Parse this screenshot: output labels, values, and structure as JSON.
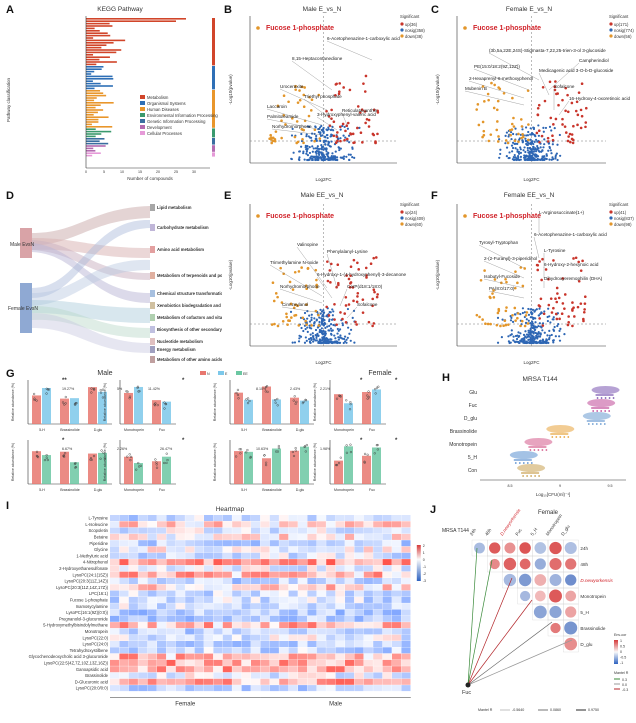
{
  "panels": {
    "A": {
      "label": "A",
      "title": "KEGG Pathway",
      "ylabel": "Pathway classification",
      "xlabel": "Number of compounds",
      "legend": [
        "Metabolism",
        "Organismal Systems",
        "Human Diseases",
        "Environmental Information Processing",
        "Genetic Information Processing",
        "Development",
        "Cellular Processes"
      ],
      "legend_colors": [
        "#d1452a",
        "#2e6fb6",
        "#e9962b",
        "#3a9a6e",
        "#3a6ea0",
        "#b46bb0",
        "#e69ad8"
      ]
    },
    "B": {
      "label": "B",
      "title": "Male E_vs_N",
      "fuc": "Fucose 1-phosphate",
      "ann": [
        "6-Acetophenazine-1-carboxylic acid",
        "8,15-Heptacontanedione",
        "Uroceraxite",
        "Triethyl phosphate",
        "Laccaroin",
        "Palmitoleamide",
        "Norhydromorphone",
        "Reticulataxanthin",
        "3-Hydroxyphenyl-valeric acid"
      ],
      "legend_title": "Significant",
      "legend": [
        "up(36)",
        "nosig(358)",
        "down(38)"
      ],
      "xlabel": "Log2FC",
      "ylabel": "-Log10(pvalue)"
    },
    "C": {
      "label": "C",
      "title": "Female E_vs_N",
      "fuc": "Fucose 1-phosphate",
      "ann": [
        "(3b,5a,22E,24S)-Stigmasta-7,22,25-trien-3-ol 3-glucoside",
        "Campherindiol",
        "PE(15:0/18:2(9Z,12Z))",
        "Medicagenic acid 3-O-b-D-glucoside",
        "2-Hexaprenyl-6-methoxyphenol",
        "Mubenin B",
        "Sofalcone",
        "16-Hydroxy-4-oxoretinoic acid"
      ],
      "legend_title": "Significant",
      "legend": [
        "up(171)",
        "nosig(774)",
        "down(56)"
      ],
      "xlabel": "Log2FC",
      "ylabel": "-Log10(pvalue)"
    },
    "D": {
      "label": "D",
      "left": [
        "Male EvsN",
        "Female EvsN"
      ],
      "right": [
        "Lipid metabolism",
        "Carbohydrate metabolism",
        "Amino acid metabolism",
        "Metabolism of terpenoids and polyketides",
        "Chemical structure transformation maps",
        "Xenobiotics biodegradation and metabolism",
        "Metabolism of cofactors and vitamins",
        "Biosynthesis of other secondary metabolites",
        "Nucleotide metabolism",
        "Energy metabolism",
        "Metabolism of other amino acids"
      ]
    },
    "E": {
      "label": "E",
      "title": "Male EE_vs_N",
      "fuc": "Fucose 1-phosphate",
      "ann": [
        "Valinopine",
        "Phenylalanyl-Lysine",
        "Trimethylamine N-oxide",
        "6-Hydroxy-1-(4-hydroxyphenyl)-3-decanone",
        "Norhydromorphone",
        "CerP(d18:1/18:0)",
        "Cinnzeylanol",
        "Sofalcone"
      ],
      "legend_title": "Significant",
      "legend": [
        "up(24)",
        "nosig(409)",
        "down(60)"
      ],
      "xlabel": "Log2FC",
      "ylabel": "-Log10(pvalue)"
    },
    "F": {
      "label": "F",
      "title": "Female EE_vs_N",
      "fuc": "Fucose 1-phosphate",
      "ann": [
        "L-Arginosuccinate(1+)",
        "6-Acetophenazine-1-carboxylic acid",
        "Tyrosyl-Tryptophan",
        "L-Tyrosine",
        "2-(2-Furanyl)-3-piperidinol",
        "6-Hydroxy-2-hexynoic acid",
        "Isobutyl-Fucoside",
        "Dihydroxyeremophilin (DHA)",
        "PA(8:0/17:0)"
      ],
      "legend_title": "Significant",
      "legend": [
        "up(41)",
        "nosig(837)",
        "down(98)"
      ],
      "xlabel": "Log2FC",
      "ylabel": "-Log10(pvalue)"
    },
    "G": {
      "label": "G",
      "male": "Male",
      "female": "Female",
      "legend": [
        "N",
        "E",
        "EE"
      ],
      "ylabel": "Relative abundance (%)",
      "cats_a": [
        "5-H",
        "Brassinolide",
        "D-glu"
      ],
      "cats_b": [
        "Monotropein",
        "Fuc"
      ],
      "pct": [
        "19.27%",
        "5%",
        "11.42%",
        "8.10%",
        "2.43%",
        "2.21%",
        "6.67%",
        "2.26%",
        "26.47%",
        "10.63%",
        "1.98%"
      ],
      "stars": [
        "**",
        "*",
        "*",
        "*",
        "*",
        "*",
        "*",
        "*"
      ]
    },
    "H": {
      "label": "H",
      "title": "MRSA T144",
      "cats": [
        "Glu",
        "Fuc",
        "D_glu",
        "Brassinolide",
        "Monotropein",
        "5_H",
        "Con"
      ],
      "xlabel": "Log₁₀[CFU(ml)⁻¹]",
      "ticks": [
        "8.5",
        "9",
        "9.5"
      ]
    },
    "I": {
      "label": "I",
      "title": "Heartmap",
      "rows": [
        "L-Tyrosine",
        "L-Isoleucine",
        "Scopoletin",
        "Betaine",
        "Piperidine",
        "Glycine",
        "1-Methyluric acid",
        "4-Nitrophenol",
        "2-Hydroxyethanesulfonate",
        "LysoPC(24:1(15Z))",
        "LysoPC(20:3(11Z,14Z))",
        "LysoPC(20:3(11Z,14Z,17Z))",
        "LPC(16:1)",
        "Fucose 1-phosphate",
        "Inamosycylamine",
        "LysoPC(16:1(9Z)(0:0))",
        "Pregnanolol-3-glucuronide",
        "5-Hydroxymethylbisindolylmethane",
        "Monotropein",
        "LysoPC(22:0)",
        "LysoPC(24:0)",
        "Tetrahydroxystilbene",
        "Glycochenodeoxycholic acid 3-glucuronide",
        "LysoPC(22:5(4Z,7Z,10Z,13Z,16Z))",
        "Ganoapsidic acid",
        "Brassinolide",
        "D-Glucuronic acid",
        "LysoPC(20:0/0:0)"
      ],
      "group_female": "Female",
      "group_male": "Male",
      "scale": [
        "2",
        "1",
        "0",
        "-1",
        "-2",
        "-3"
      ]
    },
    "J": {
      "label": "J",
      "female": "Female",
      "mrsa": "MRSA T144",
      "top": [
        "24h",
        "48h",
        "D.newyorkensis",
        "Fuc",
        "5_H",
        "Monotropein",
        "D_glu"
      ],
      "right": [
        "24h",
        "48h",
        "D.newyorkensis",
        "Monotropein",
        "5_H",
        "Brassinolide",
        "D_glu"
      ],
      "fuc": "Fuc",
      "scale_title": "Env-cor",
      "scale": [
        "1",
        "0.5",
        "0",
        "-0.5",
        "-1"
      ],
      "mantel_title": "Mantel R",
      "mantel_r": [
        "-0.5640",
        "0.0860",
        "0.9750"
      ],
      "mantel_label": "Mantel R",
      "mantel_r2": [
        "0.3",
        "0.0",
        "-0.3"
      ]
    }
  }
}
